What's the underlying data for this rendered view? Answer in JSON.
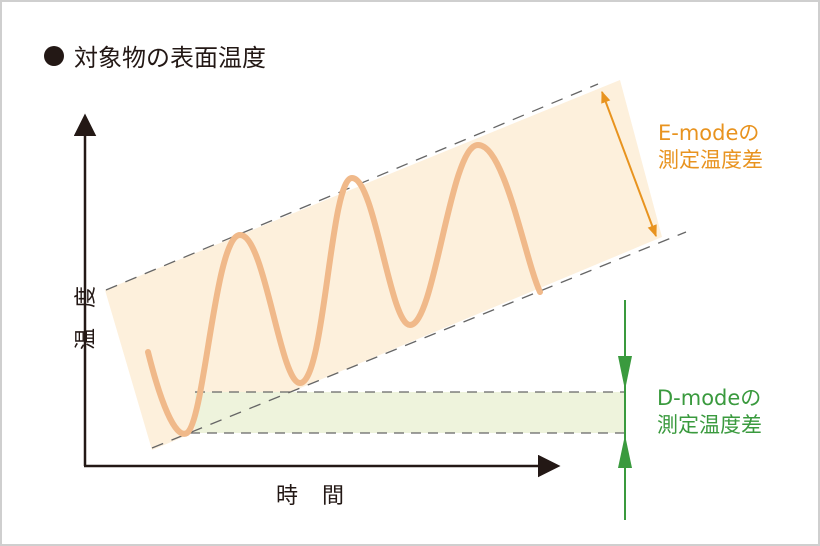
{
  "title": "対象物の表面温度",
  "y_axis_label": "温度",
  "x_axis_label": "時間",
  "e_mode": {
    "line1": "E-modeの",
    "line2": "測定温度差",
    "color": "#e8931f"
  },
  "d_mode": {
    "line1": "D-modeの",
    "line2": "測定温度差",
    "color": "#3a9a3e"
  },
  "colors": {
    "wave": "#f0b98a",
    "e_band": "#fdf0dc",
    "d_band": "#eef3dc",
    "axis": "#231815"
  }
}
